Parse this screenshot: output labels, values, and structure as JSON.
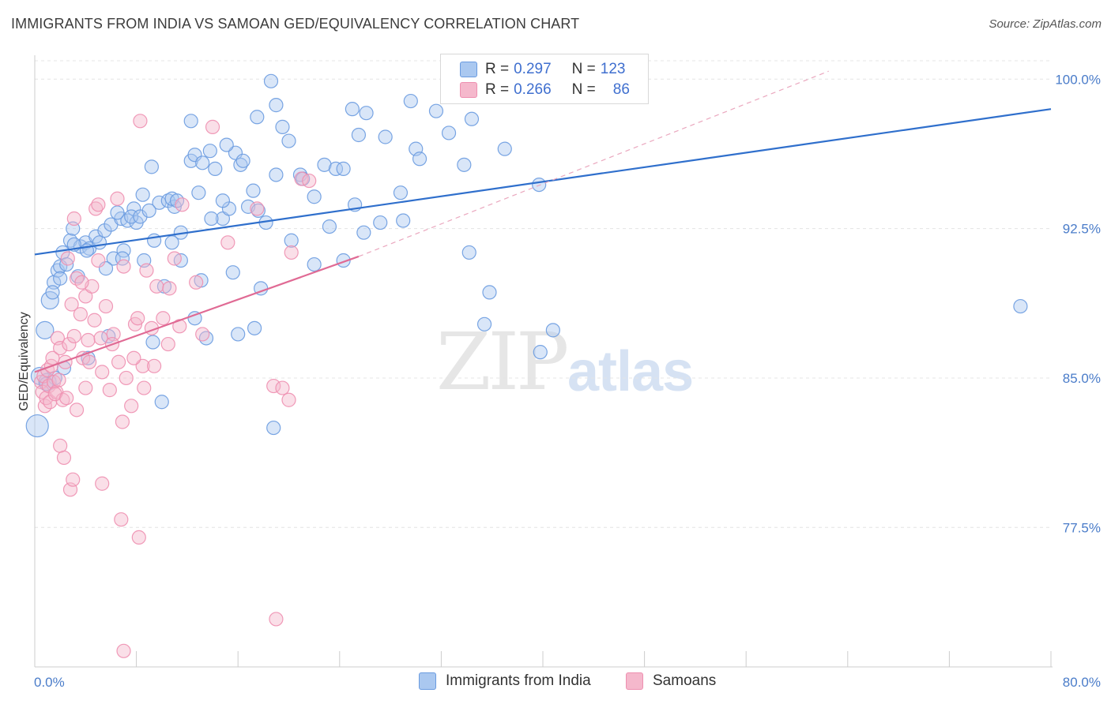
{
  "title": "IMMIGRANTS FROM INDIA VS SAMOAN GED/EQUIVALENCY CORRELATION CHART",
  "source": "Source: ZipAtlas.com",
  "watermark": {
    "zip": "ZIP",
    "atlas": "atlas"
  },
  "legend": {
    "rows": [
      {
        "r_label": "R =",
        "r_value": "0.297",
        "n_label": "N =",
        "n_value": "123",
        "color": "#aac8f0"
      },
      {
        "r_label": "R =",
        "r_value": "0.266",
        "n_label": "N =",
        "n_value": "86",
        "color": "#f5b8cc"
      }
    ]
  },
  "bottom_legend": [
    {
      "label": "Immigrants from India",
      "color": "#aac8f0"
    },
    {
      "label": "Samoans",
      "color": "#f5b8cc"
    }
  ],
  "chart_data": {
    "type": "scatter",
    "title": "IMMIGRANTS FROM INDIA VS SAMOAN GED/EQUIVALENCY CORRELATION CHART",
    "xlabel": "",
    "ylabel": "GED/Equivalency",
    "xlim": [
      0,
      80
    ],
    "ylim": [
      70.5,
      101.2
    ],
    "x_tick_labels": [
      "0.0%",
      "80.0%"
    ],
    "y_ticks": [
      77.5,
      85.0,
      92.5,
      100.0
    ],
    "y_tick_labels": [
      "77.5%",
      "85.0%",
      "92.5%",
      "100.0%"
    ],
    "grid": true,
    "series": [
      {
        "name": "Immigrants from India",
        "color": "#6a9be0",
        "fill": "#aac8f0",
        "trend": {
          "x": [
            0,
            80
          ],
          "y": [
            91.2,
            98.5
          ],
          "color": "#2f6fcc"
        },
        "points": [
          [
            0.2,
            82.6,
            3
          ],
          [
            0.4,
            85.1,
            2
          ],
          [
            0.8,
            87.4,
            2
          ],
          [
            1.2,
            88.9,
            2
          ],
          [
            1.0,
            84.8,
            2
          ],
          [
            1.5,
            89.8,
            1
          ],
          [
            1.8,
            90.4,
            1
          ],
          [
            2.0,
            90.6,
            1
          ],
          [
            2.2,
            91.3,
            1
          ],
          [
            2.5,
            90.7,
            1
          ],
          [
            2.8,
            91.9,
            1
          ],
          [
            3.0,
            92.5,
            1
          ],
          [
            3.4,
            90.1,
            1
          ],
          [
            3.6,
            91.6,
            1
          ],
          [
            4.0,
            91.8,
            1
          ],
          [
            4.3,
            91.5,
            1
          ],
          [
            4.8,
            92.1,
            1
          ],
          [
            5.1,
            91.8,
            1
          ],
          [
            5.5,
            92.4,
            1
          ],
          [
            6.0,
            92.7,
            1
          ],
          [
            6.2,
            91.0,
            1
          ],
          [
            6.8,
            93.0,
            1
          ],
          [
            7.0,
            91.4,
            1
          ],
          [
            7.3,
            92.9,
            1
          ],
          [
            7.8,
            93.5,
            1
          ],
          [
            8.5,
            94.2,
            1
          ],
          [
            8.0,
            92.8,
            1
          ],
          [
            9.2,
            95.6,
            1
          ],
          [
            9.8,
            93.8,
            1
          ],
          [
            10.5,
            93.9,
            1
          ],
          [
            11.0,
            93.6,
            1
          ],
          [
            11.5,
            92.3,
            1
          ],
          [
            12.3,
            95.9,
            1
          ],
          [
            12.6,
            96.2,
            1
          ],
          [
            13.2,
            95.8,
            1
          ],
          [
            13.8,
            96.4,
            1
          ],
          [
            14.2,
            95.5,
            1
          ],
          [
            14.8,
            93.0,
            1
          ],
          [
            15.3,
            93.5,
            1
          ],
          [
            15.8,
            96.3,
            1
          ],
          [
            16.2,
            95.7,
            1
          ],
          [
            16.8,
            93.6,
            1
          ],
          [
            17.2,
            94.4,
            1
          ],
          [
            17.6,
            93.4,
            1
          ],
          [
            18.2,
            92.8,
            1
          ],
          [
            19.0,
            95.2,
            1
          ],
          [
            19.5,
            97.6,
            1
          ],
          [
            20.0,
            96.9,
            1
          ],
          [
            20.9,
            95.2,
            1
          ],
          [
            22.0,
            94.1,
            1
          ],
          [
            22.8,
            95.7,
            1
          ],
          [
            23.7,
            95.5,
            1
          ],
          [
            24.3,
            95.5,
            1
          ],
          [
            25.0,
            98.5,
            1
          ],
          [
            25.2,
            93.7,
            1
          ],
          [
            25.5,
            97.2,
            1
          ],
          [
            27.2,
            92.8,
            1
          ],
          [
            27.6,
            97.1,
            1
          ],
          [
            28.8,
            94.3,
            1
          ],
          [
            29.0,
            92.9,
            1
          ],
          [
            29.6,
            98.9,
            1
          ],
          [
            30.0,
            96.5,
            1
          ],
          [
            30.3,
            96.0,
            1
          ],
          [
            31.6,
            98.4,
            1
          ],
          [
            32.6,
            97.3,
            1
          ],
          [
            33.8,
            95.7,
            1
          ],
          [
            34.4,
            98.0,
            1
          ],
          [
            37.0,
            96.5,
            1
          ],
          [
            39.7,
            94.7,
            1
          ],
          [
            18.6,
            99.9,
            1
          ],
          [
            19.0,
            98.7,
            1
          ],
          [
            17.5,
            98.1,
            1
          ],
          [
            12.3,
            97.9,
            1
          ],
          [
            12.9,
            94.3,
            1
          ],
          [
            10.8,
            94.0,
            1
          ],
          [
            11.2,
            93.9,
            1
          ],
          [
            14.8,
            93.9,
            1
          ],
          [
            13.9,
            93.0,
            1
          ],
          [
            9.4,
            91.9,
            1
          ],
          [
            10.8,
            91.8,
            1
          ],
          [
            8.6,
            90.9,
            1
          ],
          [
            11.5,
            90.9,
            1
          ],
          [
            15.6,
            90.3,
            1
          ],
          [
            13.1,
            89.9,
            1
          ],
          [
            17.8,
            89.5,
            1
          ],
          [
            22.0,
            90.7,
            1
          ],
          [
            24.3,
            90.9,
            1
          ],
          [
            20.2,
            91.9,
            1
          ],
          [
            25.9,
            92.3,
            1
          ],
          [
            34.2,
            91.3,
            1
          ],
          [
            35.8,
            89.3,
            1
          ],
          [
            35.4,
            87.7,
            1
          ],
          [
            40.8,
            87.4,
            1
          ],
          [
            39.8,
            86.3,
            1
          ],
          [
            12.6,
            88.0,
            1
          ],
          [
            13.5,
            87.0,
            1
          ],
          [
            16.0,
            87.2,
            1
          ],
          [
            17.3,
            87.5,
            1
          ],
          [
            9.3,
            86.8,
            1
          ],
          [
            4.2,
            86.0,
            1
          ],
          [
            10.0,
            83.8,
            1
          ],
          [
            18.8,
            82.5,
            1
          ],
          [
            77.6,
            88.6,
            1
          ],
          [
            10.2,
            89.6,
            1
          ],
          [
            5.8,
            87.1,
            1
          ],
          [
            2.3,
            85.5,
            1
          ],
          [
            1.6,
            85.0,
            1
          ],
          [
            0.9,
            84.7,
            1
          ],
          [
            1.4,
            89.3,
            1
          ],
          [
            2.0,
            90.0,
            1
          ],
          [
            3.1,
            91.7,
            1
          ],
          [
            4.1,
            91.4,
            1
          ],
          [
            6.5,
            93.3,
            1
          ],
          [
            7.6,
            93.1,
            1
          ],
          [
            8.3,
            93.1,
            1
          ],
          [
            9.0,
            93.4,
            1
          ],
          [
            5.6,
            90.5,
            1
          ],
          [
            6.9,
            91.0,
            1
          ],
          [
            15.1,
            96.7,
            1
          ],
          [
            16.4,
            95.9,
            1
          ],
          [
            21.1,
            95.0,
            1
          ],
          [
            23.2,
            92.6,
            1
          ],
          [
            26.1,
            98.3,
            1
          ]
        ]
      },
      {
        "name": "Samoans",
        "color": "#ee8fb0",
        "fill": "#f5b8cc",
        "trend": {
          "x": [
            0,
            25.5
          ],
          "y": [
            85.3,
            91.1
          ],
          "color": "#e06a94"
        },
        "trend_ext": {
          "x": [
            25.5,
            62.5
          ],
          "y": [
            91.1,
            100.4
          ]
        },
        "points": [
          [
            0.5,
            84.8,
            1
          ],
          [
            0.6,
            84.3,
            1
          ],
          [
            0.7,
            85.1,
            1
          ],
          [
            0.8,
            83.6,
            1
          ],
          [
            0.9,
            84.0,
            1
          ],
          [
            1.0,
            85.4,
            1
          ],
          [
            1.1,
            84.6,
            1
          ],
          [
            1.2,
            83.8,
            1
          ],
          [
            1.3,
            85.6,
            1
          ],
          [
            1.4,
            86.0,
            1
          ],
          [
            1.5,
            84.8,
            1
          ],
          [
            1.7,
            84.3,
            1
          ],
          [
            1.8,
            87.0,
            1
          ],
          [
            2.0,
            86.5,
            1
          ],
          [
            2.2,
            83.9,
            1
          ],
          [
            2.4,
            85.8,
            1
          ],
          [
            2.7,
            86.7,
            1
          ],
          [
            2.9,
            88.7,
            1
          ],
          [
            3.1,
            87.1,
            1
          ],
          [
            3.3,
            90.0,
            1
          ],
          [
            3.6,
            88.2,
            1
          ],
          [
            3.8,
            86.0,
            1
          ],
          [
            4.0,
            89.1,
            1
          ],
          [
            4.2,
            86.9,
            1
          ],
          [
            4.5,
            89.6,
            1
          ],
          [
            4.7,
            87.9,
            1
          ],
          [
            5.0,
            90.9,
            1
          ],
          [
            5.3,
            85.3,
            1
          ],
          [
            5.6,
            88.6,
            1
          ],
          [
            5.9,
            84.4,
            1
          ],
          [
            6.2,
            87.2,
            1
          ],
          [
            6.6,
            85.8,
            1
          ],
          [
            7.0,
            90.6,
            1
          ],
          [
            7.2,
            85.0,
            1
          ],
          [
            7.6,
            83.6,
            1
          ],
          [
            7.9,
            87.7,
            1
          ],
          [
            8.1,
            88.0,
            1
          ],
          [
            8.5,
            85.6,
            1
          ],
          [
            8.8,
            90.4,
            1
          ],
          [
            9.2,
            87.5,
            1
          ],
          [
            9.6,
            89.6,
            1
          ],
          [
            10.1,
            88.0,
            1
          ],
          [
            10.6,
            89.5,
            1
          ],
          [
            11.0,
            91.0,
            1
          ],
          [
            11.4,
            87.6,
            1
          ],
          [
            12.7,
            89.8,
            1
          ],
          [
            13.2,
            87.2,
            1
          ],
          [
            15.2,
            91.8,
            1
          ],
          [
            17.5,
            93.5,
            1
          ],
          [
            18.8,
            84.6,
            1
          ],
          [
            19.5,
            84.5,
            1
          ],
          [
            20.0,
            83.9,
            1
          ],
          [
            20.2,
            91.3,
            1
          ],
          [
            21.0,
            95.0,
            1
          ],
          [
            21.6,
            94.9,
            1
          ],
          [
            2.0,
            81.6,
            1
          ],
          [
            2.3,
            81.0,
            1
          ],
          [
            2.8,
            79.4,
            1
          ],
          [
            3.0,
            79.9,
            1
          ],
          [
            5.3,
            79.7,
            1
          ],
          [
            6.8,
            77.9,
            1
          ],
          [
            8.2,
            77.0,
            1
          ],
          [
            7.0,
            71.3,
            1
          ],
          [
            19.0,
            72.9,
            1
          ],
          [
            8.3,
            97.9,
            1
          ],
          [
            14.0,
            97.6,
            1
          ],
          [
            4.8,
            93.5,
            1
          ],
          [
            5.0,
            93.7,
            1
          ],
          [
            6.5,
            94.0,
            1
          ],
          [
            3.1,
            93.0,
            1
          ],
          [
            11.6,
            93.7,
            1
          ],
          [
            2.6,
            91.0,
            1
          ],
          [
            3.7,
            89.8,
            1
          ],
          [
            4.3,
            85.8,
            1
          ],
          [
            5.2,
            87.0,
            1
          ],
          [
            6.1,
            86.7,
            1
          ],
          [
            7.8,
            86.0,
            1
          ],
          [
            9.4,
            85.6,
            1
          ],
          [
            10.5,
            86.7,
            1
          ],
          [
            8.6,
            84.5,
            1
          ],
          [
            4.0,
            84.5,
            1
          ],
          [
            3.3,
            83.4,
            1
          ],
          [
            1.6,
            84.2,
            1
          ],
          [
            1.9,
            84.9,
            1
          ],
          [
            2.5,
            84.0,
            1
          ],
          [
            6.9,
            82.8,
            1
          ]
        ]
      }
    ]
  }
}
